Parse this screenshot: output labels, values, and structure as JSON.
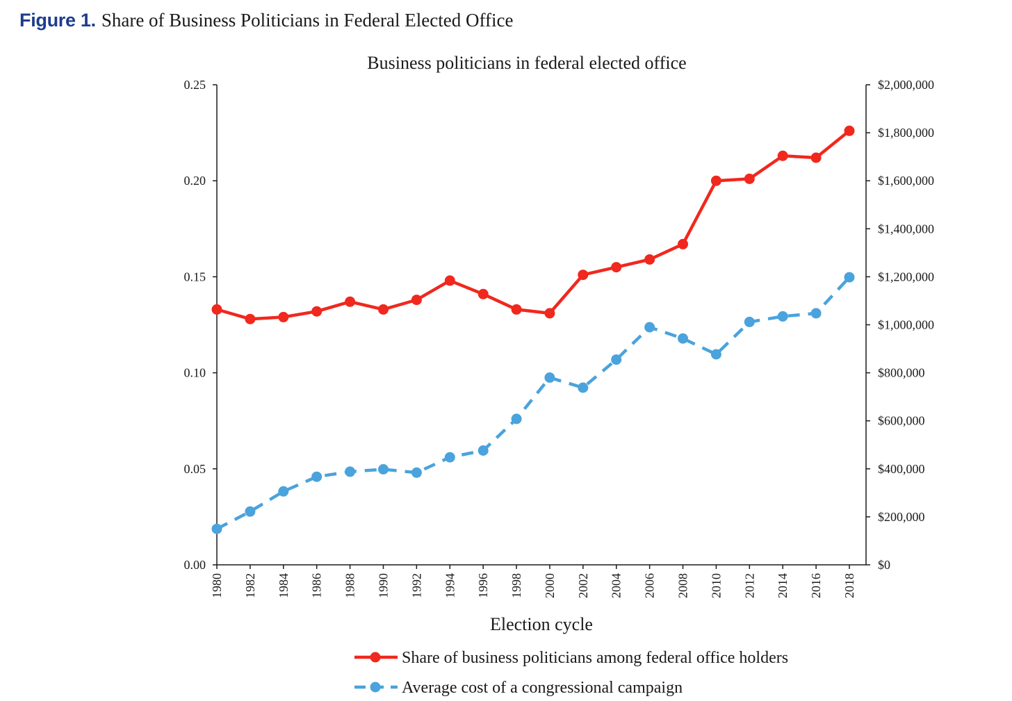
{
  "figure": {
    "label": "Figure 1.",
    "title": "Share of Business Politicians in Federal Elected Office"
  },
  "chart_data": {
    "type": "line",
    "title": "Business politicians in federal elected office",
    "xlabel": "Election cycle",
    "ylabel": "",
    "ylabel_right": "",
    "categories": [
      "1980",
      "1982",
      "1984",
      "1986",
      "1988",
      "1990",
      "1992",
      "1994",
      "1996",
      "1998",
      "2000",
      "2002",
      "2004",
      "2006",
      "2008",
      "2010",
      "2012",
      "2014",
      "2016",
      "2018"
    ],
    "ylim": [
      0,
      0.25
    ],
    "yticks": [
      "0.00",
      "0.05",
      "0.10",
      "0.15",
      "0.20",
      "0.25"
    ],
    "ylim_right": [
      0,
      2000000
    ],
    "yticks_right": [
      "$0",
      "$200,000",
      "$400,000",
      "$600,000",
      "$800,000",
      "$1,000,000",
      "$1,200,000",
      "$1,400,000",
      "$1,600,000",
      "$1,800,000",
      "$2,000,000"
    ],
    "grid": false,
    "legend_position": "bottom",
    "series": [
      {
        "name": "Share of business politicians among federal office holders",
        "axis": "left",
        "color": "#f0281e",
        "style": "solid",
        "values": [
          0.133,
          0.128,
          0.129,
          0.132,
          0.137,
          0.133,
          0.138,
          0.148,
          0.141,
          0.133,
          0.131,
          0.151,
          0.155,
          0.159,
          0.167,
          0.2,
          0.201,
          0.213,
          0.212,
          0.226
        ]
      },
      {
        "name": "Average cost of a congressional campaign",
        "axis": "right",
        "color": "#4aa3dc",
        "style": "dashed",
        "values": [
          150000,
          222000,
          306000,
          367000,
          388000,
          398000,
          384000,
          448000,
          476000,
          608000,
          780000,
          738000,
          855000,
          990000,
          943000,
          877000,
          1012000,
          1035000,
          1048000,
          1198000
        ]
      }
    ]
  }
}
